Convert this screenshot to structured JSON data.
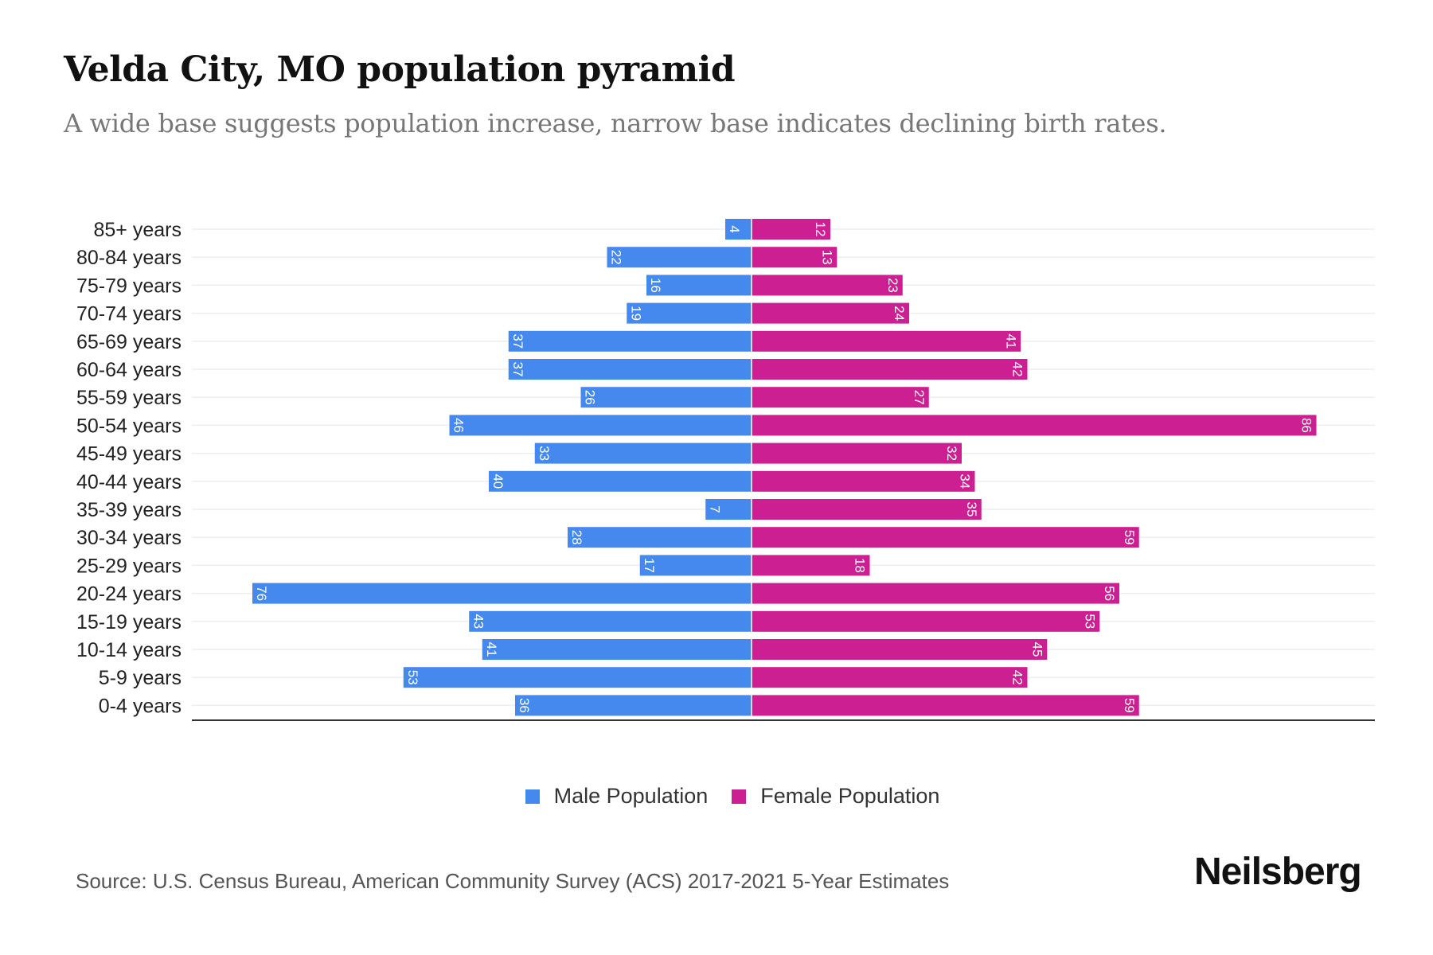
{
  "header": {
    "title": "Velda City, MO population pyramid",
    "subtitle": "A wide base suggests population increase, narrow base indicates declining birth rates."
  },
  "footer": {
    "source": "Source: U.S. Census Bureau, American Community Survey (ACS) 2017-2021 5-Year Estimates",
    "brand": "Neilsberg"
  },
  "colors": {
    "male": "#4589ee",
    "female": "#cc1f92"
  },
  "chart_data": {
    "type": "bar",
    "orientation": "horizontal-pyramid",
    "title": "Velda City, MO population pyramid",
    "categories": [
      "85+ years",
      "80-84 years",
      "75-79 years",
      "70-74 years",
      "65-69 years",
      "60-64 years",
      "55-59 years",
      "50-54 years",
      "45-49 years",
      "40-44 years",
      "35-39 years",
      "30-34 years",
      "25-29 years",
      "20-24 years",
      "15-19 years",
      "10-14 years",
      "5-9 years",
      "0-4 years"
    ],
    "series": [
      {
        "name": "Male Population",
        "values": [
          4,
          22,
          16,
          19,
          37,
          37,
          26,
          46,
          33,
          40,
          7,
          28,
          17,
          76,
          43,
          41,
          53,
          36
        ]
      },
      {
        "name": "Female Population",
        "values": [
          12,
          13,
          23,
          24,
          41,
          42,
          27,
          86,
          32,
          34,
          35,
          59,
          18,
          56,
          53,
          45,
          42,
          59
        ]
      }
    ],
    "legend_position": "bottom-center",
    "grid": true
  }
}
